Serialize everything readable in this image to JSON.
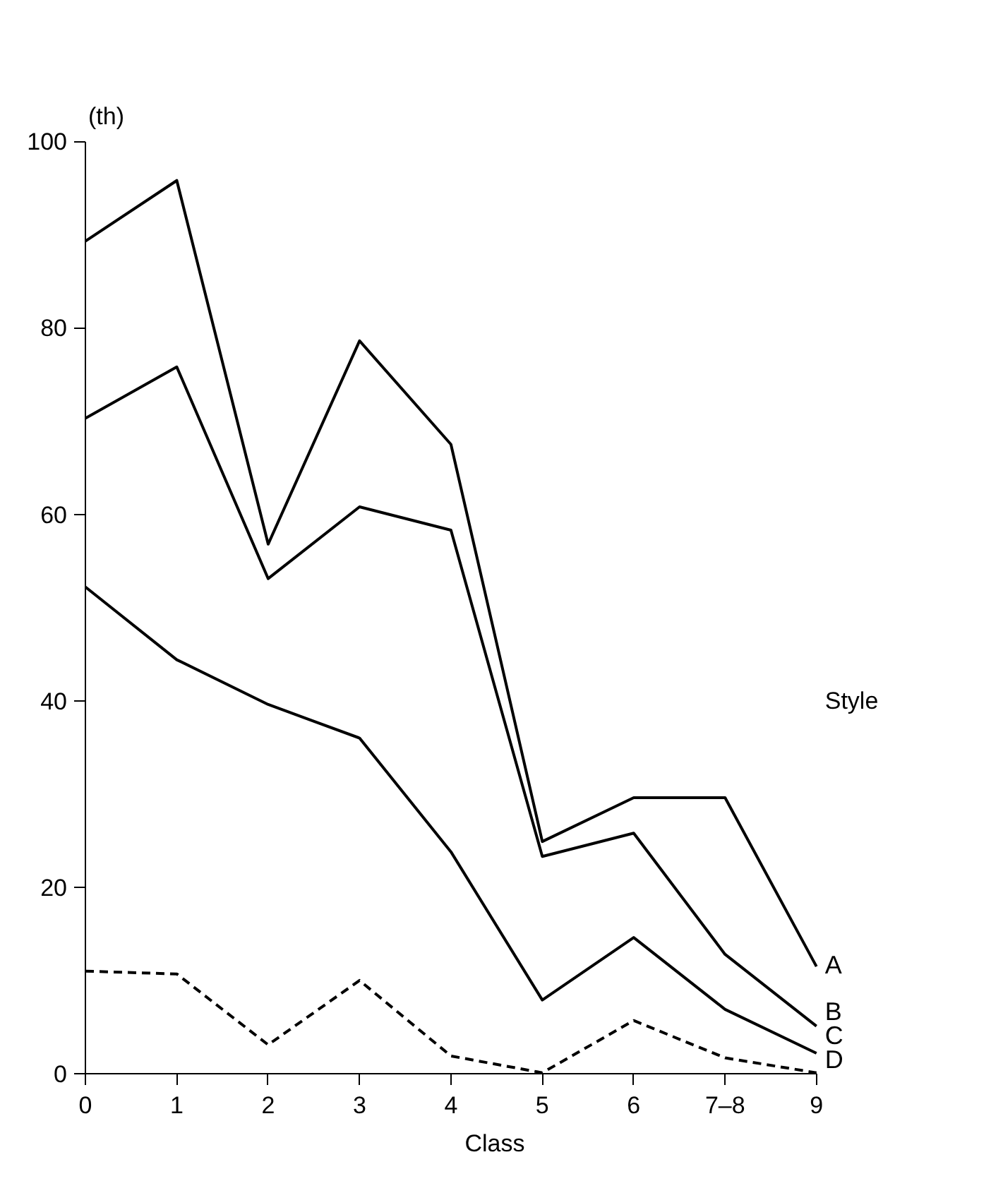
{
  "chart_data": {
    "type": "line",
    "xlabel": "Class",
    "ylabel": "(th)",
    "legend_title": "Style",
    "categories": [
      "0",
      "1",
      "2",
      "3",
      "4",
      "5",
      "6",
      "7–8",
      "9"
    ],
    "ylim": [
      0,
      100
    ],
    "yticks": [
      0,
      20,
      40,
      60,
      80,
      100
    ],
    "grid": false,
    "marker": "none",
    "series": [
      {
        "name": "A",
        "color": "#000000",
        "line_style": "solid",
        "values": [
          89.3,
          95.8,
          56.8,
          78.6,
          67.5,
          24.9,
          29.6,
          29.6,
          11.5
        ]
      },
      {
        "name": "B",
        "color": "#000000",
        "line_style": "solid",
        "values": [
          70.3,
          75.8,
          53.1,
          60.8,
          58.3,
          23.3,
          25.8,
          12.8,
          5.1
        ]
      },
      {
        "name": "C",
        "color": "#000000",
        "line_style": "solid",
        "values": [
          52.2,
          44.4,
          39.6,
          36.0,
          23.8,
          7.9,
          14.6,
          6.9,
          2.2
        ]
      },
      {
        "name": "D",
        "color": "#000000",
        "line_style": "dashed",
        "values": [
          11.0,
          10.7,
          3.1,
          10.0,
          1.9,
          0.1,
          5.7,
          1.7,
          0.1
        ]
      }
    ]
  }
}
